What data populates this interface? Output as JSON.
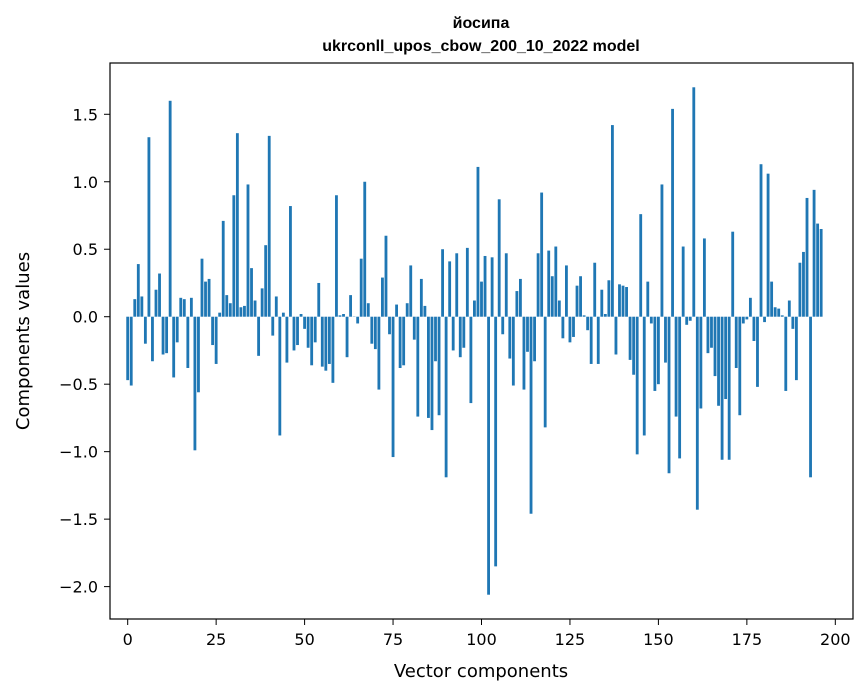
{
  "chart_data": {
    "type": "bar",
    "title_lines": [
      "йосипа",
      "ukrconll_upos_cbow_200_10_2022 model"
    ],
    "xlabel": "Vector components",
    "ylabel": "Components values",
    "xlim": [
      -5,
      205
    ],
    "ylim": [
      -2.24,
      1.88
    ],
    "xticks": [
      0,
      25,
      50,
      75,
      100,
      125,
      150,
      175,
      200
    ],
    "yticks": [
      -2.0,
      -1.5,
      -1.0,
      -0.5,
      0.0,
      0.5,
      1.0,
      1.5
    ],
    "ytick_labels": [
      "−2.0",
      "−1.5",
      "−1.0",
      "−0.5",
      "0.0",
      "0.5",
      "1.0",
      "1.5"
    ],
    "bar_color": "#1f77b4",
    "grid": false,
    "values": [
      -0.47,
      -0.51,
      0.13,
      0.39,
      0.15,
      -0.2,
      1.33,
      -0.33,
      0.2,
      0.32,
      -0.28,
      -0.27,
      1.6,
      -0.45,
      -0.19,
      0.14,
      0.13,
      -0.38,
      0.14,
      -0.99,
      -0.56,
      0.43,
      0.26,
      0.28,
      -0.21,
      -0.35,
      0.03,
      0.71,
      0.16,
      0.1,
      0.9,
      1.36,
      0.07,
      0.08,
      0.98,
      0.36,
      0.12,
      -0.29,
      0.21,
      0.53,
      1.34,
      -0.14,
      0.15,
      -0.88,
      0.03,
      -0.34,
      0.82,
      -0.25,
      -0.21,
      0.02,
      -0.09,
      -0.23,
      -0.36,
      -0.19,
      0.25,
      -0.37,
      -0.4,
      -0.35,
      -0.49,
      0.9,
      0.01,
      0.02,
      -0.3,
      0.16,
      0.0,
      -0.05,
      0.43,
      1.0,
      0.1,
      -0.2,
      -0.24,
      -0.54,
      0.29,
      0.6,
      -0.13,
      -1.04,
      0.09,
      -0.38,
      -0.36,
      0.1,
      0.38,
      -0.17,
      -0.74,
      0.28,
      0.08,
      -0.75,
      -0.84,
      -0.33,
      -0.73,
      0.5,
      -1.19,
      0.41,
      -0.25,
      0.47,
      -0.3,
      -0.23,
      0.51,
      -0.64,
      0.12,
      1.11,
      0.26,
      0.45,
      -2.06,
      0.44,
      -1.85,
      0.87,
      -0.13,
      0.47,
      -0.31,
      -0.51,
      0.19,
      0.28,
      -0.54,
      -0.26,
      -1.46,
      -0.33,
      0.47,
      0.92,
      -0.82,
      0.49,
      0.3,
      0.52,
      0.12,
      -0.16,
      0.38,
      -0.19,
      -0.15,
      0.23,
      0.3,
      0.01,
      -0.1,
      -0.35,
      0.4,
      -0.35,
      0.2,
      0.02,
      0.27,
      1.42,
      -0.28,
      0.24,
      0.23,
      0.22,
      -0.32,
      -0.43,
      -1.02,
      0.76,
      -0.88,
      0.26,
      -0.05,
      -0.55,
      -0.5,
      0.98,
      -0.34,
      -1.16,
      1.54,
      -0.74,
      -1.05,
      0.52,
      -0.06,
      -0.03,
      1.7,
      -1.43,
      -0.68,
      0.58,
      -0.27,
      -0.23,
      -0.44,
      -0.66,
      -1.06,
      -0.61,
      -1.06,
      0.63,
      -0.38,
      -0.73,
      -0.05,
      -0.02,
      0.14,
      -0.18,
      -0.52,
      1.13,
      -0.04,
      1.06,
      0.26,
      0.07,
      0.06,
      0.01,
      -0.55,
      0.12,
      -0.09,
      -0.47,
      0.4,
      0.48,
      0.88,
      -1.19,
      0.94,
      0.69,
      0.65
    ]
  }
}
